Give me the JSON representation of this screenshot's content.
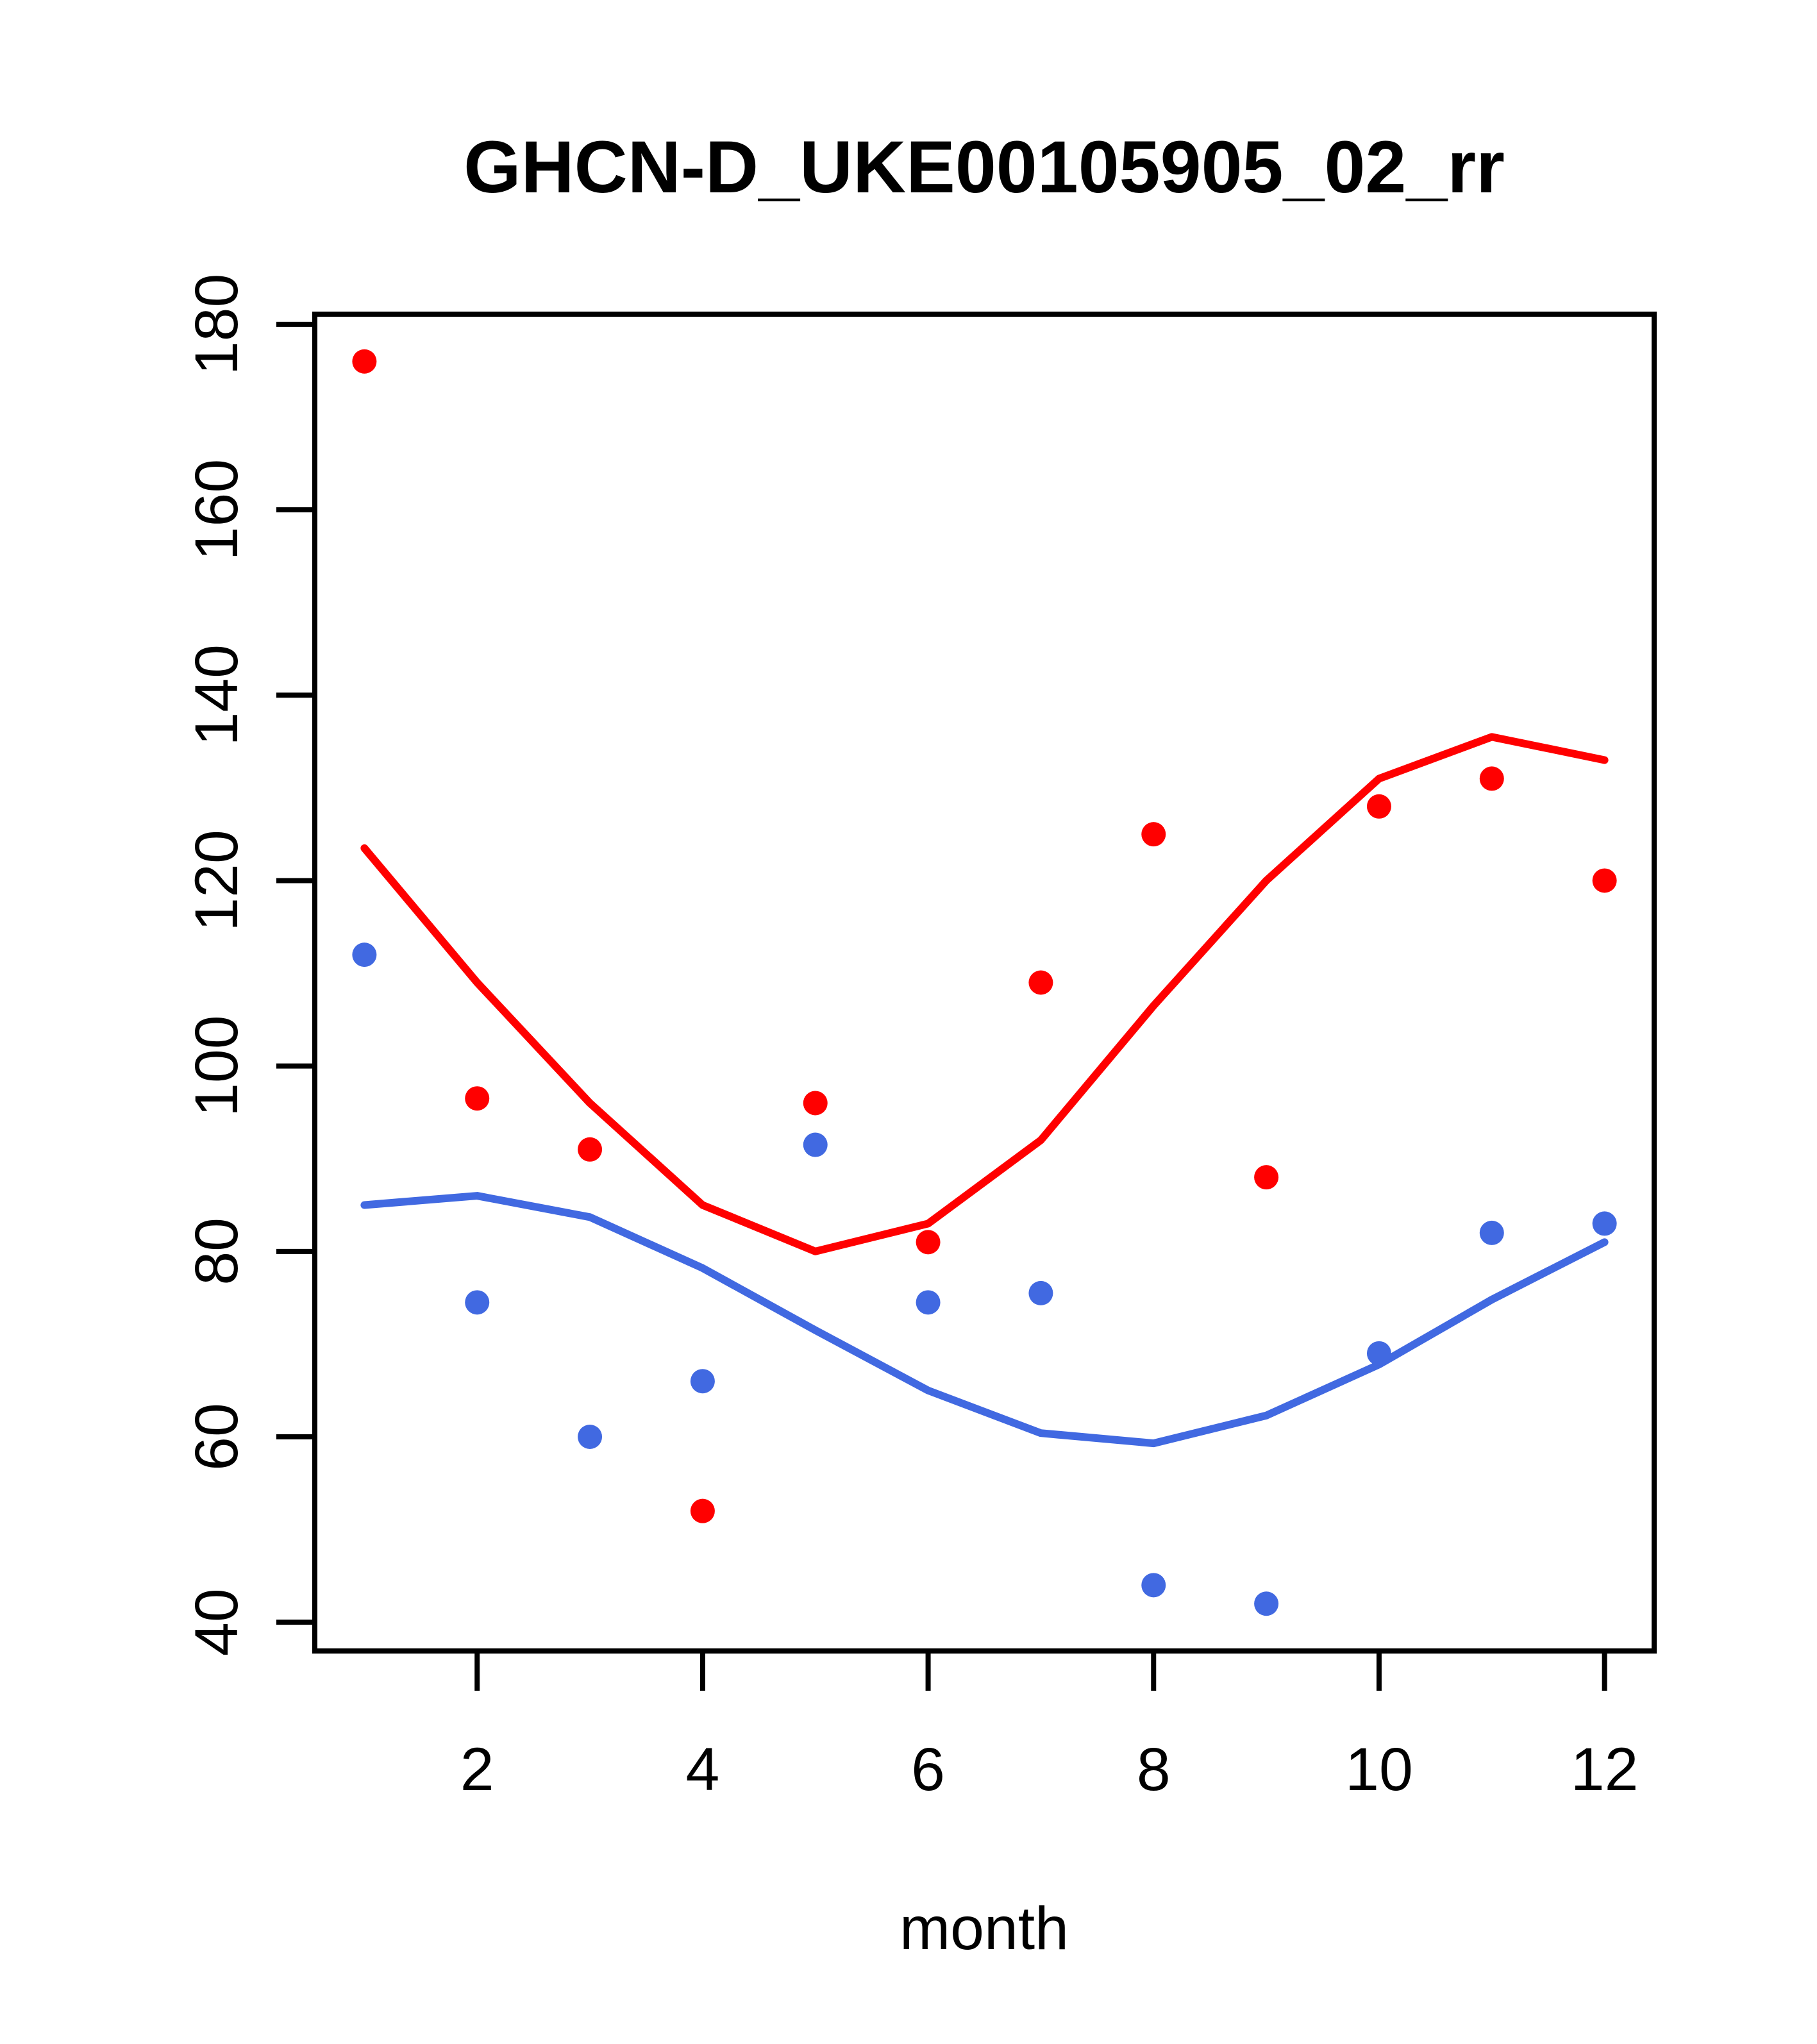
{
  "title": "GHCN-D_UKE00105905_02_rr",
  "x_axis": {
    "label": "month",
    "ticks": [
      2,
      4,
      6,
      8,
      10,
      12
    ]
  },
  "y_axis": {
    "label": "",
    "ticks": [
      40,
      60,
      80,
      100,
      120,
      140,
      160,
      180
    ]
  },
  "colors": {
    "red": "#FF0000",
    "blue": "#4169E1",
    "axis": "#000000",
    "background": "#FFFFFF"
  },
  "chart_data": {
    "type": "scatter",
    "title": "GHCN-D_UKE00105905_02_rr",
    "xlabel": "month",
    "ylabel": "",
    "x": [
      1,
      2,
      3,
      4,
      5,
      6,
      7,
      8,
      9,
      10,
      11,
      12
    ],
    "xlim": [
      0.56,
      12.44
    ],
    "ylim": [
      36.9,
      181.1
    ],
    "grid": false,
    "legend": null,
    "series": [
      {
        "name": "red-points",
        "type": "scatter",
        "color": "#FF0000",
        "values": [
          176,
          96.5,
          91,
          52,
          96,
          81,
          109,
          125,
          88,
          128,
          131,
          120
        ]
      },
      {
        "name": "blue-points",
        "type": "scatter",
        "color": "#4169E1",
        "values": [
          112,
          74.5,
          60,
          66,
          91.5,
          74.5,
          75.5,
          44,
          42,
          69,
          82,
          83
        ]
      },
      {
        "name": "red-smooth-line",
        "type": "line",
        "color": "#FF0000",
        "values": [
          123.5,
          109,
          96,
          85,
          80,
          83,
          92,
          106.5,
          120,
          131,
          135.5,
          133
        ]
      },
      {
        "name": "blue-smooth-line",
        "type": "line",
        "color": "#4169E1",
        "values": [
          85,
          86,
          83.7,
          78.2,
          71.5,
          65,
          60.4,
          59.3,
          62.3,
          67.8,
          74.8,
          81
        ]
      }
    ]
  }
}
